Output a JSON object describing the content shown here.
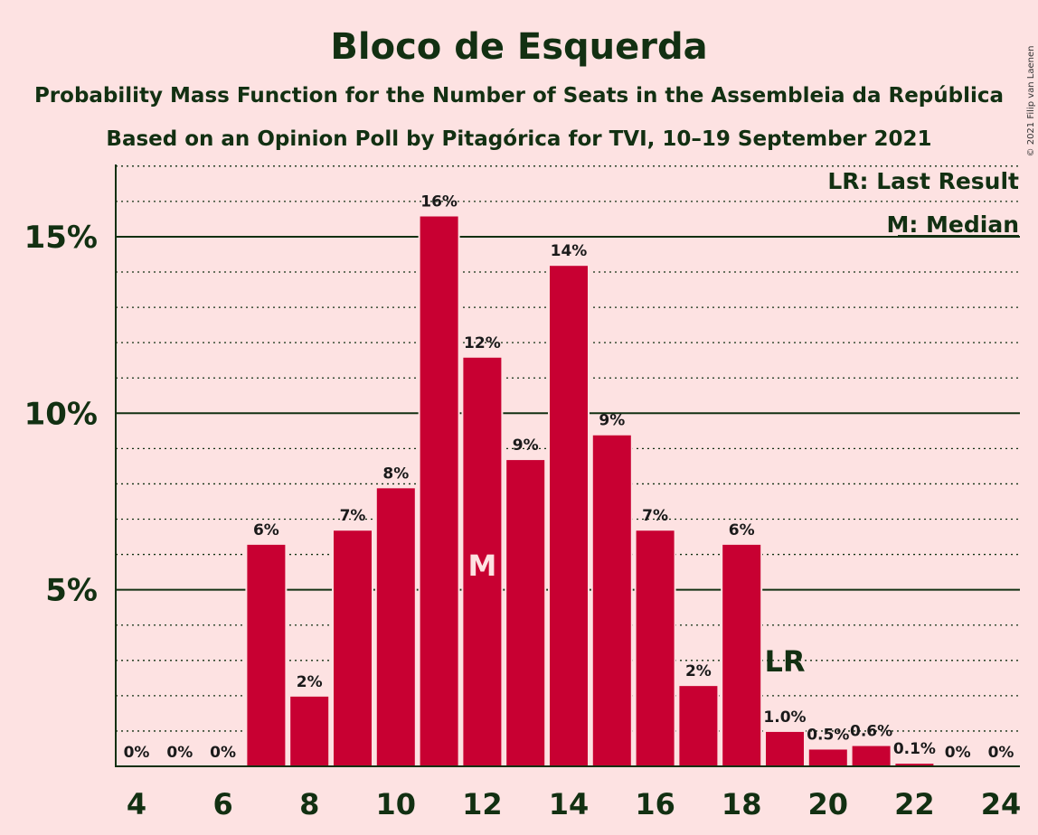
{
  "chart_data": {
    "type": "bar",
    "title": "Bloco de Esquerda",
    "subtitle": "Probability Mass Function for the Number of Seats in the Assembleia da República",
    "subtitle2": "Based on an Opinion Poll by Pitagórica for TVI, 10–19 September 2021",
    "copyright": "© 2021 Filip van Laenen",
    "legend": {
      "last_result": "LR: Last Result",
      "median": "M: Median",
      "placement": "top-right"
    },
    "categories": [
      4,
      5,
      6,
      7,
      8,
      9,
      10,
      11,
      12,
      13,
      14,
      15,
      16,
      17,
      18,
      19,
      20,
      21,
      22,
      23,
      24
    ],
    "values": [
      0,
      0,
      0,
      6.3,
      2.0,
      6.7,
      7.9,
      15.6,
      11.6,
      8.7,
      14.2,
      9.4,
      6.7,
      2.3,
      6.3,
      1.0,
      0.5,
      0.6,
      0.1,
      0,
      0
    ],
    "labels": [
      "0%",
      "0%",
      "0%",
      "6%",
      "2%",
      "7%",
      "8%",
      "16%",
      "12%",
      "9%",
      "14%",
      "9%",
      "7%",
      "2%",
      "6%",
      "1.0%",
      "0.5%",
      "0.6%",
      "0.1%",
      "0%",
      "0%"
    ],
    "median_seat": 12,
    "median_label": "M",
    "last_result_seat": 19,
    "last_result_label": "LR",
    "x_tick_labels": [
      "4",
      "6",
      "8",
      "10",
      "12",
      "14",
      "16",
      "18",
      "20",
      "22",
      "24"
    ],
    "y_ticks": [
      5,
      10,
      15
    ],
    "y_tick_labels": [
      "5%",
      "10%",
      "15%"
    ],
    "ylim": [
      0,
      17
    ],
    "bar_color": "#c80032",
    "grid": true
  }
}
